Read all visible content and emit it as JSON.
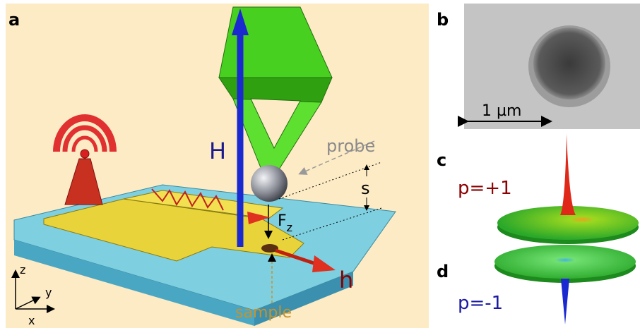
{
  "panels": {
    "a": {
      "label": "a",
      "annotations": {
        "H": "H",
        "probe": "probe",
        "s": "s",
        "force": "F",
        "force_sub": "z",
        "sample": "sample",
        "h": "h"
      },
      "axes": {
        "x": "x",
        "y": "y",
        "z": "z"
      }
    },
    "b": {
      "label": "b",
      "scale_bar": "1 µm"
    },
    "c": {
      "label": "c",
      "polarity": "p=+1"
    },
    "d": {
      "label": "d",
      "polarity": "p=-1"
    }
  }
}
